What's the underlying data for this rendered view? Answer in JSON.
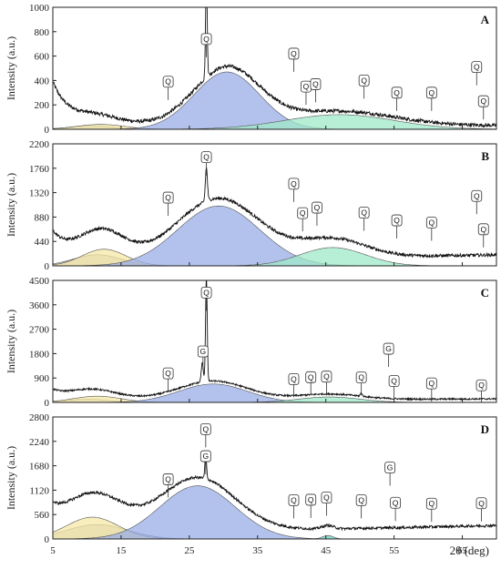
{
  "chart_data": {
    "type": "line",
    "xlabel": "2θ (deg)",
    "xlim": [
      5,
      70
    ],
    "xticks": [
      5,
      15,
      25,
      35,
      45,
      55,
      65
    ],
    "background_color": "#ffffff",
    "colors": {
      "trace": "#111111",
      "background_peak": "#bdbdbd",
      "yellow_peak": "#f6e7a6",
      "blue_peak": "#9aaee6",
      "green_peak": "#9fe8c8",
      "teal_overlap": "#6ccfc2"
    },
    "panels": [
      {
        "label": "A",
        "ylabel": "Intensity (a.u.)",
        "ylim": [
          0,
          1000
        ],
        "yticks": [
          0,
          200,
          400,
          600,
          800,
          1000
        ],
        "trace": {
          "low_angle_start": 480,
          "base": 150,
          "end_value": 40,
          "noise": 15,
          "sharp_peaks": [
            [
              27.5,
              820,
              0.12
            ]
          ]
        },
        "components": [
          {
            "name": "gray",
            "center": 10.5,
            "amplitude": 30,
            "width": 3,
            "color": "#bdbdbd"
          },
          {
            "name": "yellow",
            "center": 12,
            "amplitude": 40,
            "width": 3.5,
            "color": "#f6e7a6"
          },
          {
            "name": "blue",
            "center": 30.5,
            "amplitude": 470,
            "width": 4.8,
            "color": "#9aaee6"
          },
          {
            "name": "green",
            "center": 47,
            "amplitude": 120,
            "width": 8,
            "color": "#9fe8c8"
          }
        ],
        "markers": [
          {
            "text": "Q",
            "x": 21.9,
            "y": 390
          },
          {
            "text": "Q",
            "x": 27.5,
            "y": 740
          },
          {
            "text": "Q",
            "x": 40.3,
            "y": 620
          },
          {
            "text": "Q",
            "x": 42.1,
            "y": 350
          },
          {
            "text": "Q",
            "x": 43.5,
            "y": 370
          },
          {
            "text": "Q",
            "x": 50.6,
            "y": 400
          },
          {
            "text": "Q",
            "x": 55.4,
            "y": 300
          },
          {
            "text": "Q",
            "x": 60.5,
            "y": 300
          },
          {
            "text": "Q",
            "x": 67.1,
            "y": 510
          },
          {
            "text": "Q",
            "x": 68.1,
            "y": 230
          }
        ]
      },
      {
        "label": "B",
        "ylabel": "Intensity (a.u.)",
        "ylim": [
          0,
          2200
        ],
        "yticks": [
          0,
          440,
          880,
          1320,
          1760,
          2200
        ],
        "trace": {
          "low_angle_start": 880,
          "base": 450,
          "end_value": 300,
          "noise": 28,
          "sharp_peaks": [
            [
              27.5,
              600,
              0.15
            ]
          ]
        },
        "components": [
          {
            "name": "gray",
            "center": 11.5,
            "amplitude": 200,
            "width": 3.5,
            "color": "#bdbdbd"
          },
          {
            "name": "yellow",
            "center": 12.5,
            "amplitude": 300,
            "width": 3.2,
            "color": "#f6e7a6"
          },
          {
            "name": "blue",
            "center": 29.3,
            "amplitude": 1080,
            "width": 6,
            "color": "#9aaee6"
          },
          {
            "name": "green",
            "center": 46,
            "amplitude": 330,
            "width": 4.8,
            "color": "#9fe8c8"
          }
        ],
        "markers": [
          {
            "text": "Q",
            "x": 21.9,
            "y": 1230
          },
          {
            "text": "Q",
            "x": 27.5,
            "y": 1960
          },
          {
            "text": "Q",
            "x": 40.3,
            "y": 1480
          },
          {
            "text": "Q",
            "x": 41.6,
            "y": 950
          },
          {
            "text": "Q",
            "x": 43.7,
            "y": 1050
          },
          {
            "text": "Q",
            "x": 50.6,
            "y": 960
          },
          {
            "text": "Q",
            "x": 55.4,
            "y": 820
          },
          {
            "text": "Q",
            "x": 60.5,
            "y": 780
          },
          {
            "text": "Q",
            "x": 67.1,
            "y": 1260
          },
          {
            "text": "Q",
            "x": 68.1,
            "y": 660
          }
        ]
      },
      {
        "label": "C",
        "ylabel": "Intensity (a.u.)",
        "ylim": [
          0,
          4500
        ],
        "yticks": [
          0,
          900,
          1800,
          2700,
          3600,
          4500
        ],
        "trace": {
          "low_angle_start": 700,
          "base": 420,
          "end_value": 190,
          "noise": 30,
          "sharp_peaks": [
            [
              27.5,
              3900,
              0.12
            ],
            [
              26.9,
              700,
              0.15
            ],
            [
              50.2,
              120,
              0.15
            ]
          ]
        },
        "components": [
          {
            "name": "gray",
            "center": 10,
            "amplitude": 120,
            "width": 3,
            "color": "#bdbdbd"
          },
          {
            "name": "yellow",
            "center": 11.5,
            "amplitude": 230,
            "width": 3.5,
            "color": "#f6e7a6"
          },
          {
            "name": "blue",
            "center": 28.5,
            "amplitude": 680,
            "width": 5,
            "color": "#9aaee6"
          },
          {
            "name": "green",
            "center": 45.5,
            "amplitude": 200,
            "width": 4.5,
            "color": "#9fe8c8"
          }
        ],
        "markers": [
          {
            "text": "Q",
            "x": 21.9,
            "y": 1070
          },
          {
            "text": "Q",
            "x": 27.5,
            "y": 4050
          },
          {
            "text": "G",
            "x": 27.0,
            "y": 1880
          },
          {
            "text": "Q",
            "x": 40.3,
            "y": 860
          },
          {
            "text": "Q",
            "x": 42.8,
            "y": 930
          },
          {
            "text": "Q",
            "x": 45.1,
            "y": 950
          },
          {
            "text": "Q",
            "x": 50.2,
            "y": 920
          },
          {
            "text": "G",
            "x": 54.2,
            "y": 1980
          },
          {
            "text": "Q",
            "x": 55.0,
            "y": 790
          },
          {
            "text": "Q",
            "x": 60.5,
            "y": 700
          },
          {
            "text": "Q",
            "x": 67.8,
            "y": 630
          }
        ]
      },
      {
        "label": "D",
        "ylabel": "Intensity (a.u.)",
        "ylim": [
          0,
          2800
        ],
        "yticks": [
          0,
          560,
          1120,
          1680,
          2240,
          2800
        ],
        "trace": {
          "low_angle_start": 950,
          "base": 560,
          "end_value": 480,
          "noise": 30,
          "sharp_peaks": [
            [
              27.4,
              550,
              0.12
            ]
          ]
        },
        "components": [
          {
            "name": "gray",
            "center": 11.5,
            "amplitude": 330,
            "width": 4.5,
            "color": "#bdbdbd"
          },
          {
            "name": "yellow",
            "center": 10.8,
            "amplitude": 500,
            "width": 3.8,
            "color": "#f6e7a6"
          },
          {
            "name": "blue",
            "center": 26.2,
            "amplitude": 1220,
            "width": 5.5,
            "color": "#9aaee6"
          },
          {
            "name": "green",
            "center": 45.3,
            "amplitude": 80,
            "width": 0.8,
            "color": "#6ccfc2"
          }
        ],
        "markers": [
          {
            "text": "Q",
            "x": 21.9,
            "y": 1370
          },
          {
            "text": "Q",
            "x": 27.4,
            "y": 2520
          },
          {
            "text": "G",
            "x": 27.4,
            "y": 1900
          },
          {
            "text": "Q",
            "x": 40.3,
            "y": 890
          },
          {
            "text": "Q",
            "x": 42.8,
            "y": 900
          },
          {
            "text": "Q",
            "x": 45.1,
            "y": 950
          },
          {
            "text": "Q",
            "x": 50.2,
            "y": 890
          },
          {
            "text": "G",
            "x": 54.4,
            "y": 1640
          },
          {
            "text": "Q",
            "x": 55.2,
            "y": 830
          },
          {
            "text": "Q",
            "x": 60.5,
            "y": 810
          },
          {
            "text": "Q",
            "x": 67.8,
            "y": 820
          }
        ]
      }
    ]
  }
}
